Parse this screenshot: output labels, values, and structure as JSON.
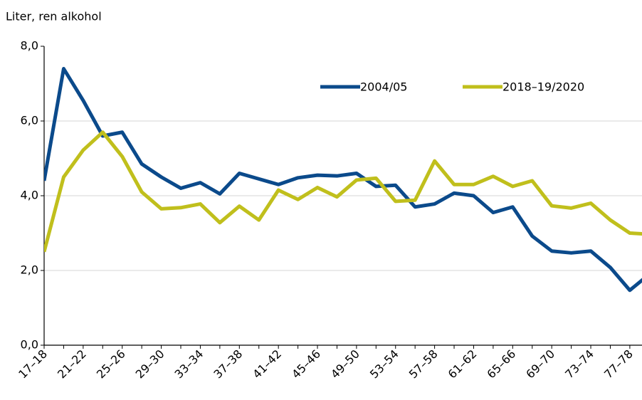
{
  "chart_data": {
    "type": "line",
    "y_label": "Liter, ren alkohol",
    "categories": [
      "17–18",
      null,
      "21–22",
      null,
      "25–26",
      null,
      "29–30",
      null,
      "33–34",
      null,
      "37–38",
      null,
      "41–42",
      null,
      "45–46",
      null,
      "49–50",
      null,
      "53–54",
      null,
      "57–58",
      null,
      "61–62",
      null,
      "65–66",
      null,
      "69–70",
      null,
      "73–74",
      null,
      "77–78",
      null
    ],
    "series": [
      {
        "name": "2004/05",
        "color": "#0b4a8b",
        "values": [
          4.4,
          7.4,
          6.55,
          5.6,
          5.7,
          4.85,
          4.5,
          4.2,
          4.35,
          4.05,
          4.6,
          4.45,
          4.3,
          4.48,
          4.55,
          4.53,
          4.6,
          4.25,
          4.28,
          3.7,
          3.78,
          4.07,
          4.0,
          3.55,
          3.7,
          2.92,
          2.52,
          2.47,
          2.52,
          2.08,
          1.47,
          1.9
        ]
      },
      {
        "name": "2018–19/2020",
        "color": "#c0bf1c",
        "values": [
          2.5,
          4.5,
          5.22,
          5.7,
          5.05,
          4.1,
          3.65,
          3.68,
          3.78,
          3.28,
          3.72,
          3.35,
          4.15,
          3.9,
          4.22,
          3.97,
          4.42,
          4.47,
          3.85,
          3.88,
          4.93,
          4.3,
          4.3,
          4.52,
          4.25,
          4.4,
          3.73,
          3.67,
          3.8,
          3.35,
          3.0,
          2.97
        ]
      }
    ],
    "ylim": [
      0,
      8
    ],
    "yticks": [
      {
        "value": 0,
        "label": "0,0"
      },
      {
        "value": 2,
        "label": "2,0"
      },
      {
        "value": 4,
        "label": "4,0"
      },
      {
        "value": 6,
        "label": "6,0"
      },
      {
        "value": 8,
        "label": "8,0"
      }
    ],
    "grid": true
  }
}
